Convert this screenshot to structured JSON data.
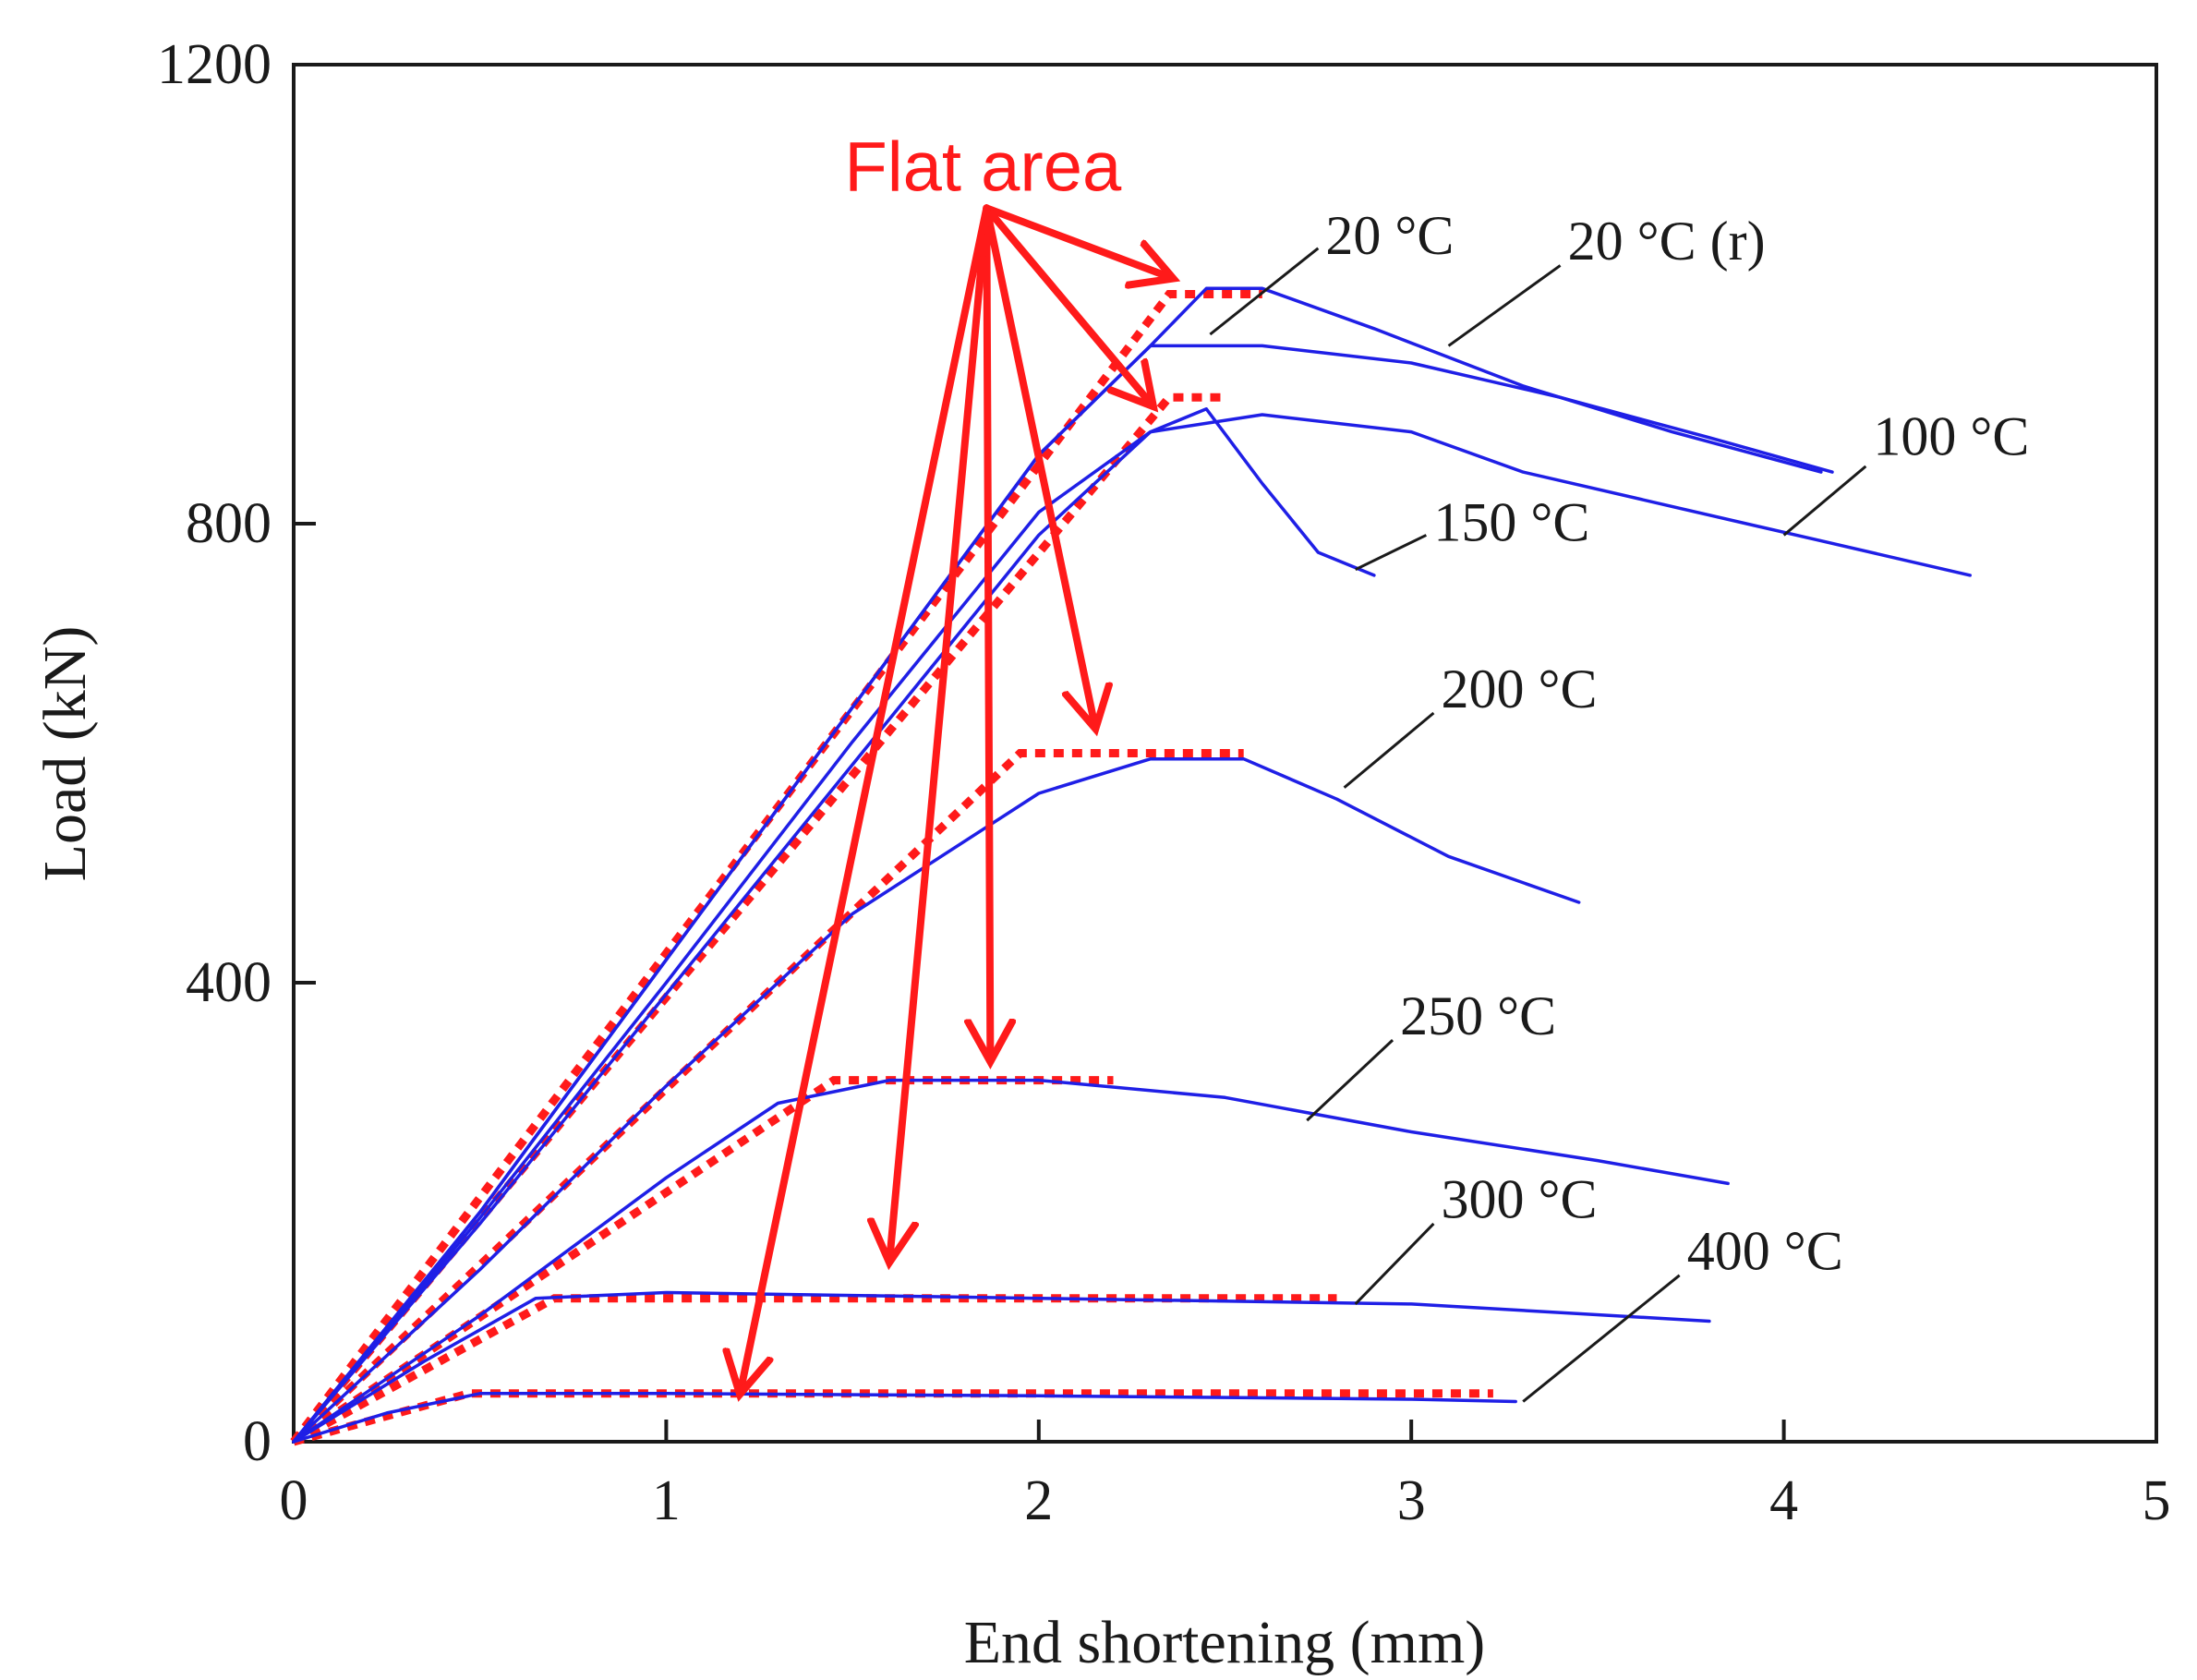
{
  "chart_data": {
    "type": "line",
    "title": "",
    "xlabel": "End shortening (mm)",
    "ylabel": "Load (kN)",
    "xlim": [
      0,
      5
    ],
    "ylim": [
      0,
      1200
    ],
    "xticks": [
      0,
      1,
      2,
      3,
      4,
      5
    ],
    "yticks": [
      0,
      400,
      800,
      1200
    ],
    "xtick_labels": [
      "0",
      "1",
      "2",
      "3",
      "4",
      "5"
    ],
    "ytick_labels": [
      "0",
      "400",
      "800",
      "1200"
    ],
    "grid": false,
    "series": [
      {
        "name": "20 °C",
        "color": "#1f1fe6",
        "x": [
          0,
          0.5,
          1.0,
          1.5,
          2.0,
          2.3,
          2.45,
          2.6,
          2.9,
          3.3,
          3.7,
          4.1
        ],
        "y": [
          0,
          200,
          420,
          640,
          860,
          955,
          1005,
          1005,
          970,
          920,
          880,
          845
        ]
      },
      {
        "name": "20 °C (r)",
        "color": "#1f1fe6",
        "x": [
          0,
          0.5,
          1.0,
          1.5,
          2.0,
          2.3,
          2.6,
          3.0,
          3.4,
          3.8,
          4.13
        ],
        "y": [
          0,
          200,
          420,
          640,
          860,
          955,
          955,
          940,
          910,
          875,
          845
        ]
      },
      {
        "name": "100 °C",
        "color": "#1f1fe6",
        "x": [
          0,
          0.5,
          1.0,
          1.5,
          2.0,
          2.3,
          2.6,
          3.0,
          3.3,
          3.7,
          4.1,
          4.5
        ],
        "y": [
          0,
          195,
          400,
          610,
          810,
          880,
          895,
          880,
          845,
          815,
          785,
          755
        ]
      },
      {
        "name": "150 °C",
        "color": "#1f1fe6",
        "x": [
          0,
          0.5,
          1.0,
          1.5,
          2.0,
          2.3,
          2.45,
          2.6,
          2.75,
          2.9
        ],
        "y": [
          0,
          190,
          390,
          590,
          790,
          880,
          900,
          835,
          775,
          755
        ]
      },
      {
        "name": "200 °C",
        "color": "#1f1fe6",
        "x": [
          0,
          0.5,
          1.0,
          1.5,
          2.0,
          2.3,
          2.55,
          2.8,
          3.1,
          3.45
        ],
        "y": [
          0,
          150,
          310,
          460,
          565,
          595,
          595,
          560,
          510,
          470
        ]
      },
      {
        "name": "250 °C",
        "color": "#1f1fe6",
        "x": [
          0,
          0.5,
          1.0,
          1.3,
          1.6,
          2.0,
          2.5,
          3.0,
          3.5,
          3.85
        ],
        "y": [
          0,
          110,
          230,
          295,
          315,
          315,
          300,
          270,
          245,
          225
        ]
      },
      {
        "name": "300 °C",
        "color": "#1f1fe6",
        "x": [
          0,
          0.35,
          0.65,
          1.0,
          2.0,
          3.0,
          3.8
        ],
        "y": [
          0,
          70,
          125,
          130,
          125,
          120,
          105
        ]
      },
      {
        "name": "400 °C",
        "color": "#1f1fe6",
        "x": [
          0,
          0.25,
          0.5,
          1.0,
          2.0,
          3.0,
          3.28
        ],
        "y": [
          0,
          25,
          42,
          42,
          40,
          37,
          35
        ]
      }
    ],
    "flat_area_fits": [
      {
        "name": "fit 20 °C",
        "color": "#ff1a1a",
        "x": [
          0,
          2.35,
          2.6
        ],
        "y": [
          0,
          1000,
          1000
        ]
      },
      {
        "name": "fit 100/150 °C",
        "color": "#ff1a1a",
        "x": [
          0,
          2.35,
          2.5
        ],
        "y": [
          0,
          910,
          910
        ]
      },
      {
        "name": "fit 200 °C",
        "color": "#ff1a1a",
        "x": [
          0,
          1.95,
          2.55
        ],
        "y": [
          0,
          600,
          600
        ]
      },
      {
        "name": "fit 250 °C",
        "color": "#ff1a1a",
        "x": [
          0,
          1.45,
          2.2
        ],
        "y": [
          0,
          315,
          315
        ]
      },
      {
        "name": "fit 300 °C",
        "color": "#ff1a1a",
        "x": [
          0,
          0.7,
          2.8
        ],
        "y": [
          0,
          125,
          125
        ]
      },
      {
        "name": "fit 400 °C",
        "color": "#ff1a1a",
        "x": [
          0,
          0.47,
          3.22
        ],
        "y": [
          0,
          42,
          42
        ]
      }
    ],
    "curve_labels": [
      {
        "text": "20 °C",
        "x": 2.77,
        "y": 1035,
        "leader": [
          [
            2.46,
            965
          ],
          [
            2.75,
            1040
          ]
        ]
      },
      {
        "text": "20 °C (r)",
        "x": 3.42,
        "y": 1030,
        "leader": [
          [
            3.1,
            955
          ],
          [
            3.4,
            1025
          ]
        ]
      },
      {
        "text": "100 °C",
        "x": 4.24,
        "y": 860,
        "leader": [
          [
            4.0,
            790
          ],
          [
            4.22,
            850
          ]
        ]
      },
      {
        "text": "150 °C",
        "x": 3.06,
        "y": 785,
        "leader": [
          [
            2.85,
            760
          ],
          [
            3.04,
            790
          ]
        ]
      },
      {
        "text": "200 °C",
        "x": 3.08,
        "y": 640,
        "leader": [
          [
            2.82,
            570
          ],
          [
            3.06,
            635
          ]
        ]
      },
      {
        "text": "250 °C",
        "x": 2.97,
        "y": 355,
        "leader": [
          [
            2.72,
            280
          ],
          [
            2.95,
            350
          ]
        ]
      },
      {
        "text": "300 °C",
        "x": 3.08,
        "y": 195,
        "leader": [
          [
            2.85,
            120
          ],
          [
            3.06,
            190
          ]
        ]
      },
      {
        "text": "400 °C",
        "x": 3.74,
        "y": 150,
        "leader": [
          [
            3.3,
            35
          ],
          [
            3.72,
            145
          ]
        ]
      }
    ],
    "annotations": [
      {
        "text": "Flat area",
        "color": "#ff1a1a",
        "x": 1.85,
        "y": 1090,
        "arrow_origin": [
          1.86,
          1075
        ],
        "arrow_targets": [
          [
            2.35,
            1015
          ],
          [
            2.3,
            905
          ],
          [
            2.15,
            625
          ],
          [
            1.87,
            335
          ],
          [
            1.6,
            160
          ],
          [
            1.2,
            45
          ]
        ]
      }
    ]
  }
}
